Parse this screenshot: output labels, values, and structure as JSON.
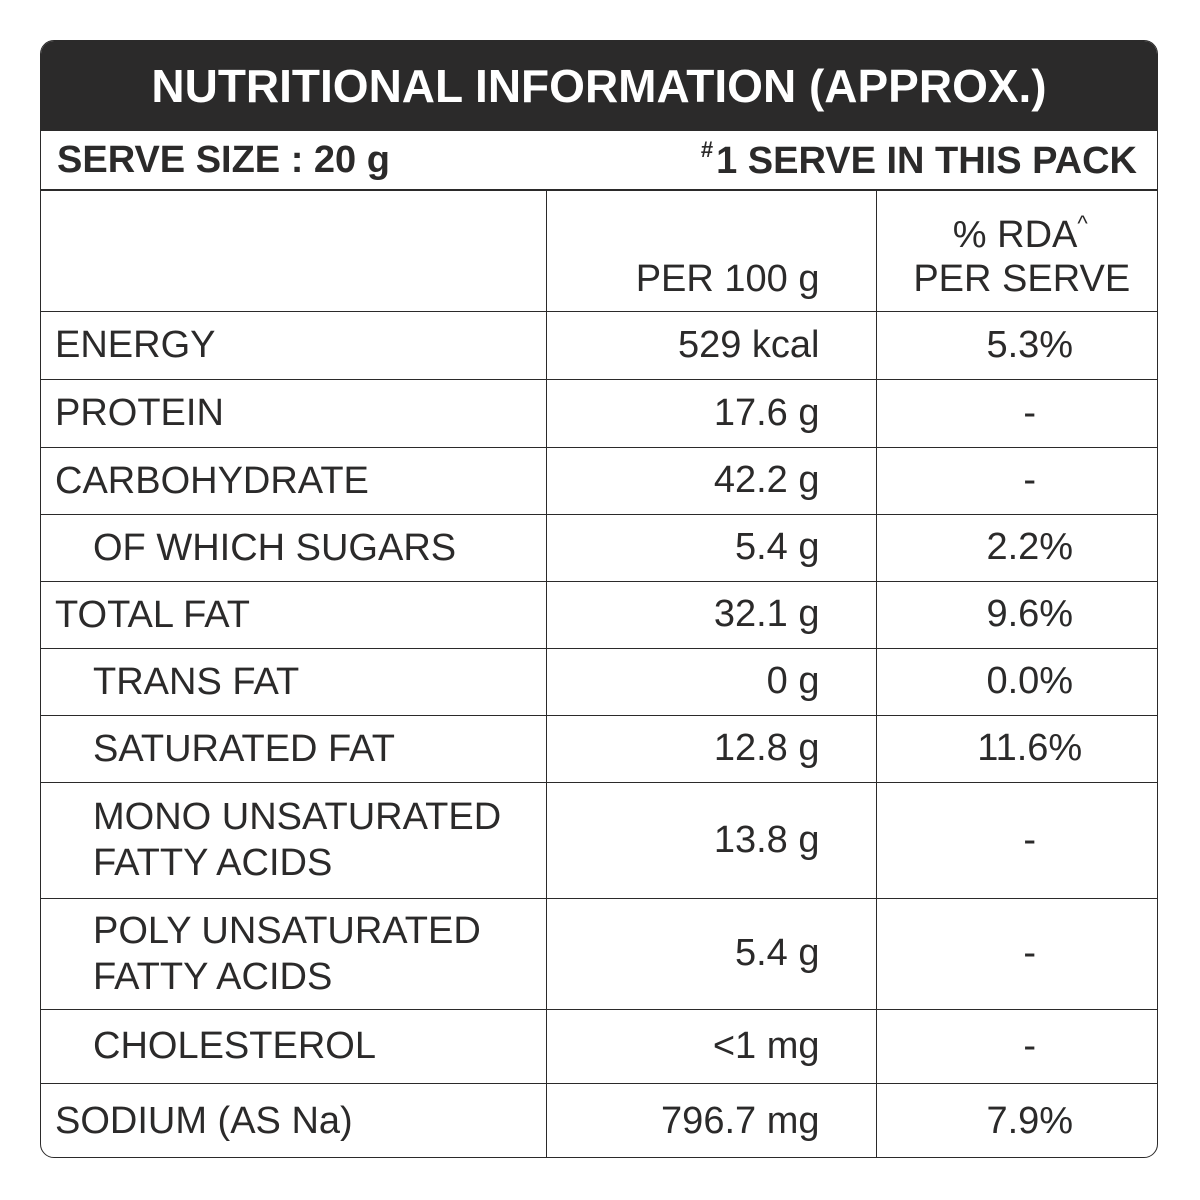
{
  "title": "NUTRITIONAL INFORMATION (APPROX.)",
  "serve_size": "SERVE SIZE : 20 g",
  "serves_mark": "#",
  "serves": "1 SERVE IN THIS PACK",
  "columns": {
    "per_100g": "PER 100 g",
    "rda": "% RDA",
    "rda_mark": "^",
    "per_serve": "PER SERVE"
  },
  "rows": [
    {
      "label": "ENERGY",
      "per_100g": "529 kcal",
      "rda": "5.3%",
      "sub": false
    },
    {
      "label": "PROTEIN",
      "per_100g": "17.6 g",
      "rda": "-",
      "sub": false
    },
    {
      "label": "CARBOHYDRATE",
      "per_100g": "42.2 g",
      "rda": "-",
      "sub": false
    },
    {
      "label": "OF WHICH SUGARS",
      "per_100g": "5.4 g",
      "rda": "2.2%",
      "sub": true
    },
    {
      "label": "TOTAL FAT",
      "per_100g": "32.1 g",
      "rda": "9.6%",
      "sub": false
    },
    {
      "label": "TRANS FAT",
      "per_100g": "0 g",
      "rda": "0.0%",
      "sub": true
    },
    {
      "label": "SATURATED FAT",
      "per_100g": "12.8 g",
      "rda": "11.6%",
      "sub": true
    },
    {
      "label": "MONO UNSATURATED\nFATTY ACIDS",
      "per_100g": "13.8 g",
      "rda": "-",
      "sub": true
    },
    {
      "label": "POLY UNSATURATED\nFATTY ACIDS",
      "per_100g": "5.4 g",
      "rda": "-",
      "sub": true
    },
    {
      "label": "CHOLESTEROL",
      "per_100g": "<1 mg",
      "rda": "-",
      "sub": true
    },
    {
      "label": "SODIUM (AS Na)",
      "per_100g": "796.7 mg",
      "rda": "7.9%",
      "sub": false
    }
  ]
}
